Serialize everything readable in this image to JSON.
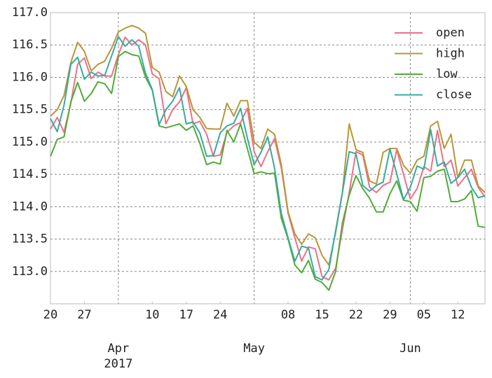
{
  "chart_data": {
    "type": "line",
    "x": [
      "2017-03-20",
      "2017-03-21",
      "2017-03-22",
      "2017-03-23",
      "2017-03-24",
      "2017-03-27",
      "2017-03-28",
      "2017-03-29",
      "2017-03-30",
      "2017-03-31",
      "2017-04-03",
      "2017-04-04",
      "2017-04-05",
      "2017-04-06",
      "2017-04-07",
      "2017-04-10",
      "2017-04-11",
      "2017-04-12",
      "2017-04-13",
      "2017-04-14",
      "2017-04-17",
      "2017-04-18",
      "2017-04-19",
      "2017-04-20",
      "2017-04-21",
      "2017-04-24",
      "2017-04-25",
      "2017-04-26",
      "2017-04-27",
      "2017-04-28",
      "2017-05-01",
      "2017-05-02",
      "2017-05-03",
      "2017-05-04",
      "2017-05-05",
      "2017-05-08",
      "2017-05-09",
      "2017-05-10",
      "2017-05-11",
      "2017-05-12",
      "2017-05-15",
      "2017-05-16",
      "2017-05-17",
      "2017-05-18",
      "2017-05-19",
      "2017-05-22",
      "2017-05-23",
      "2017-05-24",
      "2017-05-25",
      "2017-05-26",
      "2017-05-29",
      "2017-05-30",
      "2017-05-31",
      "2017-06-01",
      "2017-06-02",
      "2017-06-05",
      "2017-06-06",
      "2017-06-07",
      "2017-06-08",
      "2017-06-09",
      "2017-06-12",
      "2017-06-13",
      "2017-06-14",
      "2017-06-15",
      "2017-06-16"
    ],
    "series": [
      {
        "name": "open",
        "color": "#ec7088",
        "values": [
          115.2,
          115.38,
          115.15,
          115.6,
          116.2,
          116.3,
          115.98,
          116.08,
          116.02,
          116.02,
          116.35,
          116.62,
          116.5,
          116.58,
          116.5,
          116.05,
          115.98,
          115.28,
          115.5,
          115.62,
          115.84,
          115.28,
          115.32,
          115.12,
          114.78,
          114.8,
          115.15,
          115.25,
          115.3,
          115.52,
          114.85,
          114.62,
          114.85,
          115.05,
          114.6,
          113.9,
          113.52,
          113.16,
          113.38,
          113.35,
          112.92,
          112.87,
          113.05,
          113.65,
          114.22,
          114.85,
          114.8,
          114.3,
          114.22,
          114.33,
          114.38,
          114.88,
          114.5,
          114.12,
          114.28,
          114.62,
          114.55,
          115.18,
          114.62,
          114.72,
          114.32,
          114.45,
          114.58,
          114.3,
          114.15
        ]
      },
      {
        "name": "high",
        "color": "#b8963a",
        "values": [
          115.4,
          115.5,
          115.72,
          116.23,
          116.54,
          116.4,
          116.1,
          116.2,
          116.25,
          116.45,
          116.7,
          116.76,
          116.8,
          116.76,
          116.68,
          116.15,
          116.08,
          115.78,
          115.7,
          116.02,
          115.86,
          115.5,
          115.38,
          115.21,
          115.2,
          115.2,
          115.6,
          115.4,
          115.64,
          115.64,
          115.0,
          114.9,
          115.2,
          115.12,
          114.65,
          113.92,
          113.58,
          113.42,
          113.58,
          113.52,
          113.25,
          113.1,
          113.6,
          114.22,
          115.28,
          114.88,
          114.84,
          114.4,
          114.35,
          114.84,
          114.9,
          114.9,
          114.64,
          114.52,
          114.72,
          114.78,
          115.25,
          115.32,
          114.9,
          115.12,
          114.45,
          114.72,
          114.72,
          114.32,
          114.22
        ]
      },
      {
        "name": "low",
        "color": "#52ab38",
        "values": [
          114.78,
          115.04,
          115.08,
          115.62,
          115.92,
          115.63,
          115.75,
          115.93,
          115.9,
          115.75,
          116.32,
          116.4,
          116.35,
          116.33,
          116.0,
          115.8,
          115.25,
          115.22,
          115.25,
          115.28,
          115.18,
          115.25,
          114.98,
          114.65,
          114.69,
          114.66,
          115.18,
          115.0,
          115.28,
          114.9,
          114.51,
          114.54,
          114.51,
          114.52,
          113.82,
          113.5,
          113.1,
          112.98,
          113.17,
          112.88,
          112.83,
          112.71,
          113.0,
          113.75,
          114.18,
          114.48,
          114.28,
          114.13,
          113.92,
          113.92,
          114.2,
          114.4,
          114.1,
          114.08,
          113.93,
          114.45,
          114.47,
          114.55,
          114.58,
          114.08,
          114.08,
          114.12,
          114.25,
          113.7,
          113.68
        ]
      },
      {
        "name": "close",
        "color": "#38aa9e",
        "values": [
          115.36,
          115.16,
          115.57,
          116.2,
          116.31,
          115.97,
          116.08,
          116.02,
          116.03,
          116.33,
          116.63,
          116.48,
          116.58,
          116.48,
          116.06,
          115.81,
          115.27,
          115.5,
          115.63,
          115.84,
          115.28,
          115.31,
          115.14,
          114.78,
          114.79,
          115.14,
          115.25,
          115.29,
          115.52,
          115.06,
          114.65,
          114.84,
          115.08,
          114.6,
          113.9,
          113.52,
          113.16,
          113.39,
          113.36,
          112.92,
          112.87,
          113.03,
          113.63,
          114.22,
          114.85,
          114.82,
          114.33,
          114.24,
          114.33,
          114.38,
          114.89,
          114.51,
          114.11,
          114.3,
          114.63,
          114.58,
          115.19,
          114.63,
          114.69,
          114.36,
          114.45,
          114.58,
          114.3,
          114.14,
          114.17
        ]
      }
    ],
    "ylim": [
      112.5,
      117.0
    ],
    "yticks": [
      {
        "value": 113,
        "label": "113.0"
      },
      113.5,
      {
        "value": 114,
        "label": "114.0"
      },
      114.5,
      {
        "value": 115,
        "label": "115.0"
      },
      115.5,
      {
        "value": 116,
        "label": "116.0"
      },
      116.5,
      {
        "value": 117,
        "label": "117.0"
      }
    ],
    "xticks": [
      {
        "value": "2017-03-20",
        "label": "20"
      },
      {
        "value": "2017-03-27",
        "label": "27"
      },
      {
        "value": "2017-04-10",
        "label": "10"
      },
      {
        "value": "2017-04-17",
        "label": "17"
      },
      {
        "value": "2017-04-24",
        "label": "24"
      },
      {
        "value": "2017-05-08",
        "label": "08"
      },
      {
        "value": "2017-05-15",
        "label": "15"
      },
      {
        "value": "2017-05-22",
        "label": "22"
      },
      {
        "value": "2017-05-29",
        "label": "29"
      },
      {
        "value": "2017-06-05",
        "label": "05"
      },
      {
        "value": "2017-06-12",
        "label": "12"
      }
    ],
    "xticks_major": [
      {
        "value": "2017-04-03",
        "label": "Apr",
        "sublabel": "2017"
      },
      {
        "value": "2017-05-01",
        "label": "May"
      },
      {
        "value": "2017-06-01",
        "label": "Jun"
      }
    ],
    "grid": true,
    "legend": "upper right"
  }
}
